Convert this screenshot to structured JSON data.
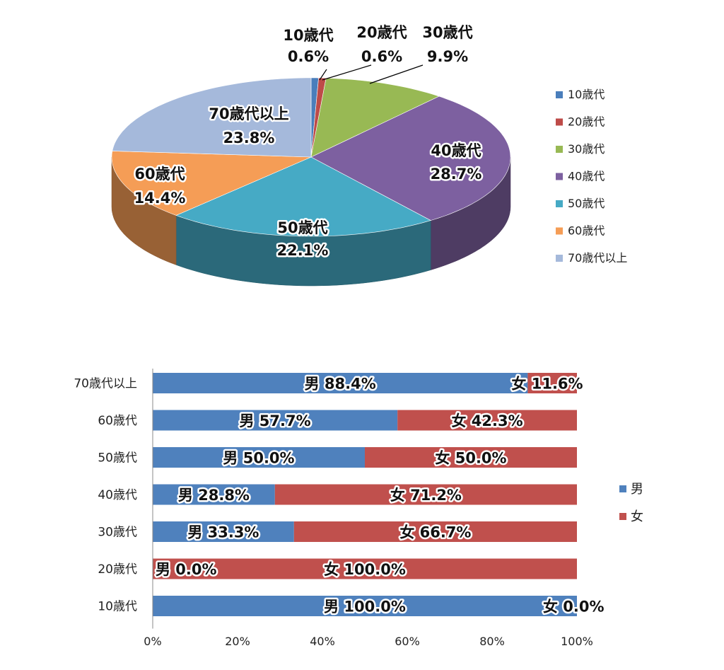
{
  "chart_data": [
    {
      "type": "pie",
      "slices": [
        {
          "label": "10歳代",
          "value": 0.6,
          "display": "0.6%",
          "color": "#4a7ebb"
        },
        {
          "label": "20歳代",
          "value": 0.6,
          "display": "0.6%",
          "color": "#be4b48"
        },
        {
          "label": "30歳代",
          "value": 9.9,
          "display": "9.9%",
          "color": "#98b954"
        },
        {
          "label": "40歳代",
          "value": 28.7,
          "display": "28.7%",
          "color": "#7d60a0"
        },
        {
          "label": "50歳代",
          "value": 22.1,
          "display": "22.1%",
          "color": "#46aac5"
        },
        {
          "label": "60歳代",
          "value": 14.4,
          "display": "14.4%",
          "color": "#f59d56"
        },
        {
          "label": "70歳代以上",
          "value": 23.8,
          "display": "23.8%",
          "color": "#a5b9db"
        }
      ],
      "legend": [
        "10歳代",
        "20歳代",
        "30歳代",
        "40歳代",
        "50歳代",
        "60歳代",
        "70歳代以上"
      ],
      "legend_position": "right",
      "style": "3d"
    },
    {
      "type": "bar",
      "orientation": "horizontal",
      "stacked": "percent",
      "categories": [
        "70歳代以上",
        "60歳代",
        "50歳代",
        "40歳代",
        "30歳代",
        "20歳代",
        "10歳代"
      ],
      "series": [
        {
          "name": "男",
          "color": "#4f81bd",
          "values": [
            88.4,
            57.7,
            50.0,
            28.8,
            33.3,
            0.0,
            100.0
          ],
          "labels": [
            "男 88.4%",
            "男 57.7%",
            "男 50.0%",
            "男 28.8%",
            "男 33.3%",
            "男 0.0%",
            "男 100.0%"
          ]
        },
        {
          "name": "女",
          "color": "#c0504d",
          "values": [
            11.6,
            42.3,
            50.0,
            71.2,
            66.7,
            100.0,
            0.0
          ],
          "labels": [
            "女 11.6%",
            "女 42.3%",
            "女 50.0%",
            "女 71.2%",
            "女 66.7%",
            "女 100.0%",
            "女 0.0%"
          ]
        }
      ],
      "xlim": [
        0,
        100
      ],
      "xticks": [
        "0%",
        "20%",
        "40%",
        "60%",
        "80%",
        "100%"
      ],
      "legend_position": "right",
      "grid": false
    }
  ]
}
